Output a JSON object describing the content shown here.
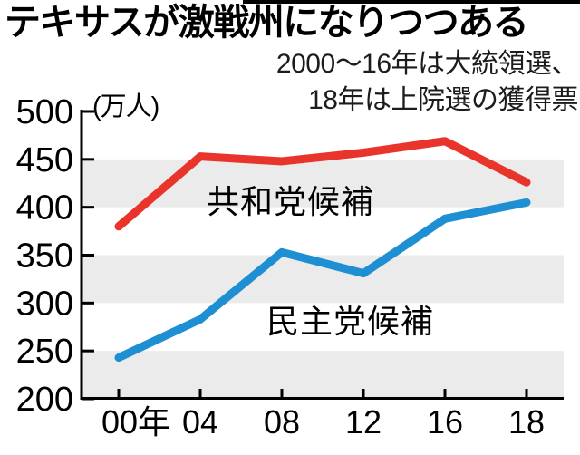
{
  "chart_data": {
    "type": "line",
    "title": "テキサスが激戦州になりつつある",
    "subtitle_line1": "2000〜16年は大統領選、",
    "subtitle_line2": "18年は上院選の獲得票",
    "unit_label": "(万人)",
    "categories": [
      "00年",
      "04",
      "08",
      "12",
      "16",
      "18"
    ],
    "series": [
      {
        "name": "共和党候補",
        "color": "#e8342a",
        "values": [
          380,
          453,
          448,
          457,
          469,
          426
        ]
      },
      {
        "name": "民主党候補",
        "color": "#1e8fd2",
        "values": [
          243,
          283,
          353,
          331,
          388,
          405
        ]
      }
    ],
    "ylim": [
      200,
      500
    ],
    "yticks": [
      500,
      450,
      400,
      350,
      300,
      250,
      200
    ],
    "grid_bands": [
      [
        400,
        450
      ],
      [
        300,
        350
      ],
      [
        200,
        250
      ]
    ],
    "band_color": "#ebebeb",
    "axis_color": "#000000",
    "values_unit": "万人",
    "legend_position": "inline-on-chart"
  }
}
